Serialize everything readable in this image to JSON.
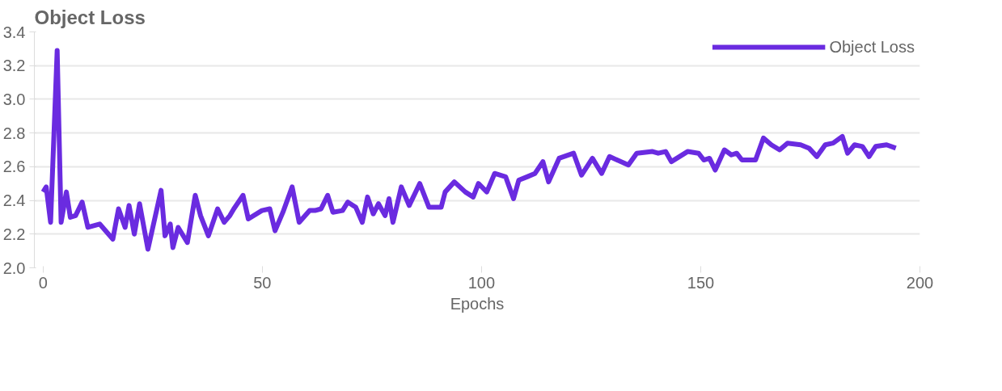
{
  "chart_data": {
    "type": "line",
    "title": "Object Loss",
    "xlabel": "Epochs",
    "xlim": [
      -2,
      200
    ],
    "xticks": [
      0,
      50,
      100,
      150,
      200
    ],
    "ylim": [
      2.0,
      3.4
    ],
    "yticks": [
      {
        "value": 2.0,
        "label": "2.0"
      },
      {
        "value": 2.2,
        "label": "2.2"
      },
      {
        "value": 2.4,
        "label": "2.4"
      },
      {
        "value": 2.6,
        "label": "2.6"
      },
      {
        "value": 2.8,
        "label": "2.8"
      },
      {
        "value": 3.0,
        "label": "3.0"
      },
      {
        "value": 3.2,
        "label": "3.2"
      },
      {
        "value": 3.4,
        "label": "3.4"
      }
    ],
    "grid": "y",
    "legend": "top right",
    "marker": "none",
    "line_style": "solid",
    "series": [
      {
        "name": "Object Loss",
        "color": "#6a2be0",
        "x": [
          0,
          0.7,
          1.7,
          3.2,
          4.1,
          5.3,
          6.2,
          7.4,
          8.9,
          10.2,
          12.9,
          15.9,
          17.2,
          18.7,
          19.6,
          20.8,
          22.0,
          23.9,
          26.9,
          27.8,
          29.0,
          29.6,
          30.8,
          32.9,
          34.7,
          35.9,
          37.7,
          39.8,
          41.3,
          42.6,
          43.5,
          45.6,
          46.8,
          49.9,
          51.7,
          52.9,
          54.7,
          56.8,
          58.4,
          60.8,
          62.0,
          63.4,
          64.9,
          66.1,
          68.3,
          69.5,
          71.3,
          72.8,
          74.0,
          75.3,
          76.5,
          78.0,
          78.9,
          79.8,
          81.7,
          83.5,
          85.9,
          88.0,
          90.8,
          91.7,
          93.8,
          96.3,
          98.1,
          99.3,
          101.2,
          103.0,
          105.5,
          107.3,
          108.5,
          110.4,
          112.2,
          114.0,
          115.3,
          117.7,
          121.0,
          122.8,
          125.3,
          127.4,
          129.2,
          133.5,
          135.4,
          139.0,
          140.3,
          142.0,
          143.3,
          147.0,
          149.5,
          150.7,
          152.0,
          153.3,
          155.4,
          157.0,
          158.2,
          159.4,
          162.5,
          164.3,
          166.1,
          168.0,
          169.8,
          172.8,
          174.7,
          176.5,
          178.4,
          180.2,
          182.3,
          183.5,
          185.1,
          186.9,
          188.4,
          189.9,
          192.4,
          194.5
        ],
        "values": [
          2.45,
          2.48,
          2.27,
          3.29,
          2.27,
          2.45,
          2.3,
          2.31,
          2.39,
          2.24,
          2.26,
          2.17,
          2.35,
          2.24,
          2.37,
          2.2,
          2.38,
          2.11,
          2.46,
          2.19,
          2.26,
          2.12,
          2.24,
          2.15,
          2.43,
          2.31,
          2.19,
          2.35,
          2.27,
          2.31,
          2.35,
          2.43,
          2.29,
          2.34,
          2.35,
          2.22,
          2.33,
          2.48,
          2.27,
          2.34,
          2.34,
          2.35,
          2.43,
          2.33,
          2.34,
          2.39,
          2.36,
          2.27,
          2.42,
          2.32,
          2.38,
          2.31,
          2.41,
          2.27,
          2.48,
          2.37,
          2.5,
          2.36,
          2.36,
          2.45,
          2.51,
          2.45,
          2.42,
          2.5,
          2.45,
          2.56,
          2.54,
          2.41,
          2.52,
          2.54,
          2.56,
          2.63,
          2.51,
          2.65,
          2.68,
          2.55,
          2.65,
          2.56,
          2.66,
          2.61,
          2.68,
          2.69,
          2.68,
          2.69,
          2.63,
          2.69,
          2.68,
          2.64,
          2.65,
          2.58,
          2.7,
          2.67,
          2.68,
          2.64,
          2.64,
          2.77,
          2.73,
          2.7,
          2.74,
          2.73,
          2.71,
          2.66,
          2.73,
          2.74,
          2.78,
          2.68,
          2.73,
          2.72,
          2.66,
          2.72,
          2.73,
          2.71
        ]
      }
    ]
  }
}
